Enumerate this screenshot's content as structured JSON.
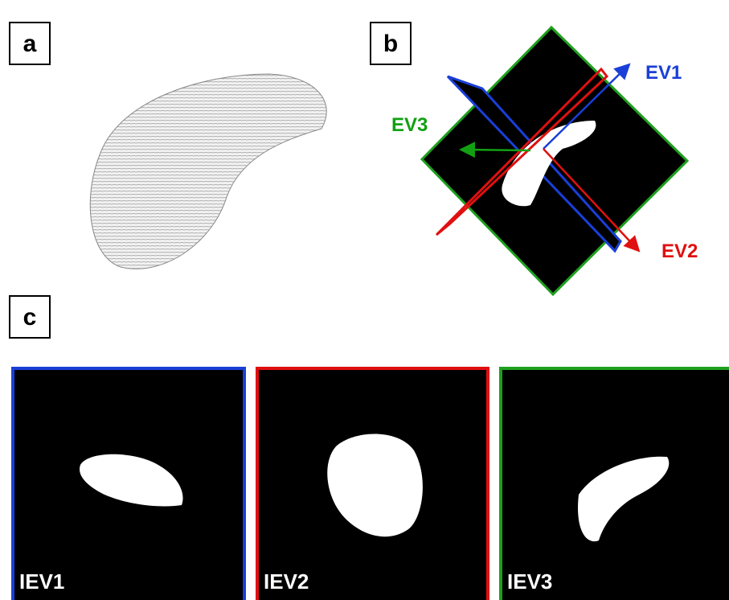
{
  "panel_labels": [
    "a",
    "b",
    "c"
  ],
  "axis_labels": [
    "EV1",
    "EV2",
    "EV3"
  ],
  "image_labels": [
    "IEV1",
    "IEV2",
    "IEV3"
  ]
}
